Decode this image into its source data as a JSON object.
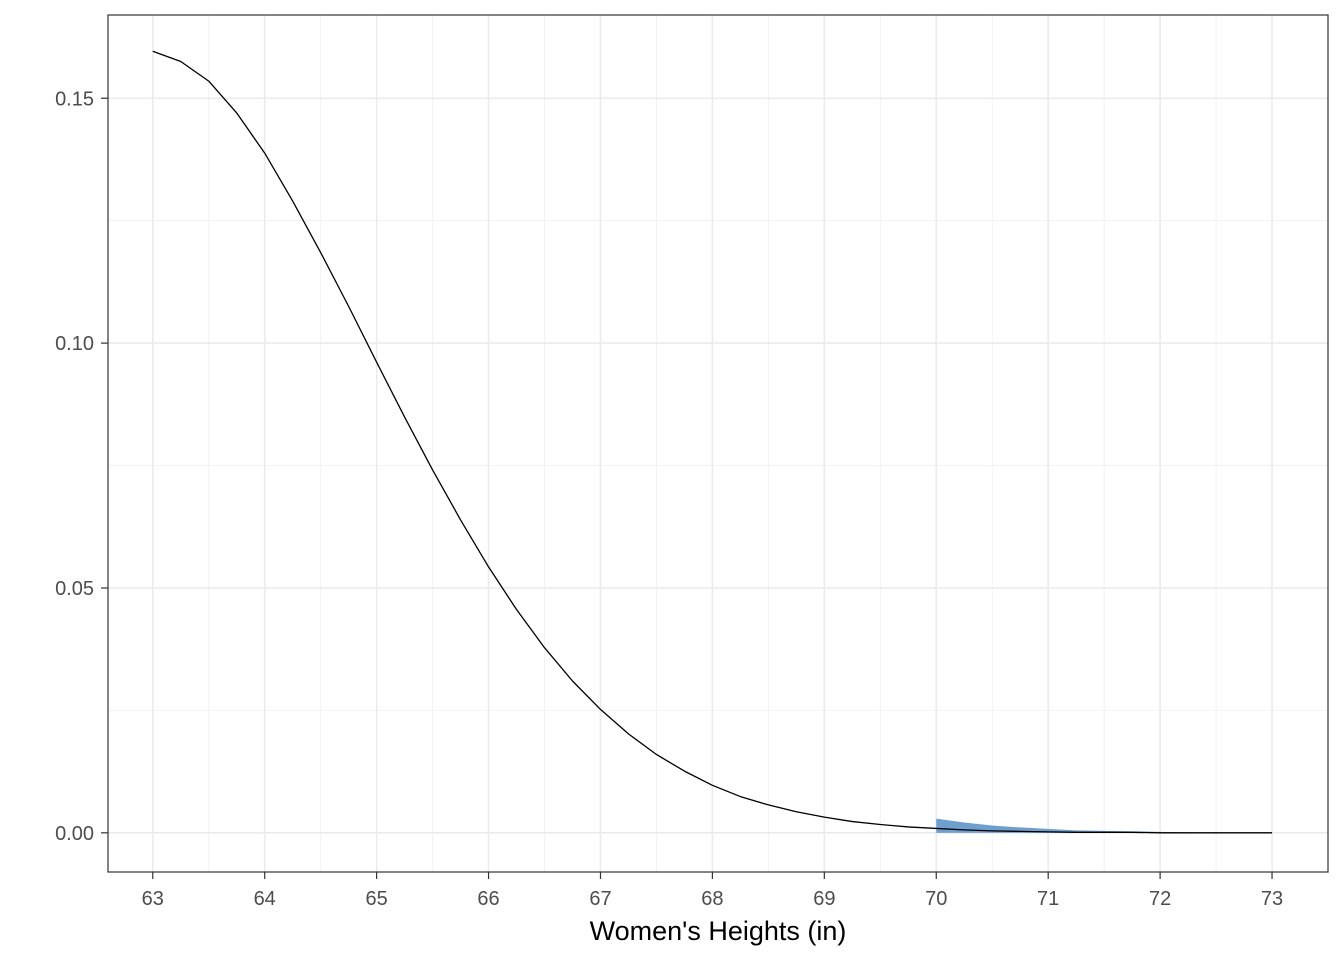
{
  "chart_data": {
    "type": "area",
    "title": "",
    "xlabel": "Women's Heights (in)",
    "ylabel": "",
    "xlim": [
      62.6,
      73.5
    ],
    "ylim": [
      -0.008,
      0.167
    ],
    "x_ticks": [
      "63",
      "64",
      "65",
      "66",
      "67",
      "68",
      "69",
      "70",
      "71",
      "72",
      "73"
    ],
    "y_ticks": [
      "0.00",
      "0.05",
      "0.10",
      "0.15"
    ],
    "grid": true,
    "legend": "none",
    "series": [
      {
        "kind": "line",
        "color": "#000000",
        "x": [
          63.0,
          63.25,
          63.5,
          63.75,
          64.0,
          64.25,
          64.5,
          64.75,
          65.0,
          65.25,
          65.5,
          65.75,
          66.0,
          66.25,
          66.5,
          66.75,
          67.0,
          67.25,
          67.5,
          67.75,
          68.0,
          68.25,
          68.5,
          68.75,
          69.0,
          69.25,
          69.5,
          69.75,
          70.0,
          70.25,
          70.5,
          70.75,
          71.0,
          71.25,
          71.5,
          71.75,
          72.0,
          72.25,
          72.5,
          72.75,
          73.0
        ],
        "y": [
          0.1596,
          0.1575,
          0.1535,
          0.147,
          0.1388,
          0.129,
          0.1185,
          0.1075,
          0.0961,
          0.0849,
          0.0741,
          0.0639,
          0.0543,
          0.0456,
          0.0378,
          0.031,
          0.0252,
          0.0202,
          0.016,
          0.0126,
          0.0097,
          0.0074,
          0.0057,
          0.0043,
          0.0032,
          0.0023,
          0.0017,
          0.0012,
          0.0009,
          0.0006,
          0.0004,
          0.0003,
          0.0002,
          0.0001,
          0.0001,
          0.0001,
          0.0,
          0.0,
          0.0,
          0.0,
          0.0
        ]
      },
      {
        "kind": "shaded-area",
        "color": "#6f9fce",
        "x": [
          70.0,
          70.25,
          70.5,
          70.75,
          71.0,
          71.25,
          71.5,
          71.75,
          72.0,
          72.25,
          72.5,
          72.75,
          73.0
        ],
        "y": [
          0.0029,
          0.0021,
          0.0015,
          0.0011,
          0.0008,
          0.0005,
          0.0004,
          0.0003,
          0.0002,
          0.0001,
          0.0001,
          0.0,
          0.0
        ]
      }
    ]
  }
}
